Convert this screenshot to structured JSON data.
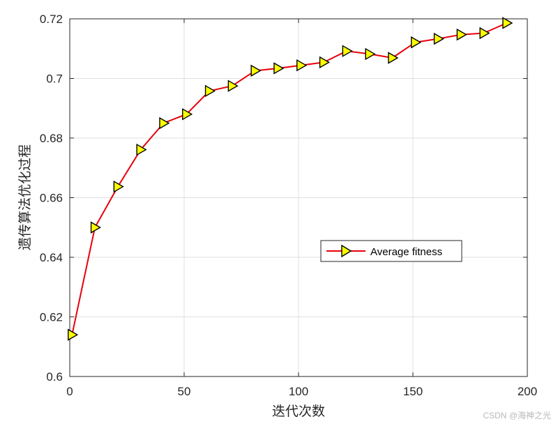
{
  "chart_data": {
    "type": "line",
    "title": "",
    "xlabel": "迭代次数",
    "ylabel": "遗传算法优化过程",
    "xlim": [
      0,
      200
    ],
    "ylim": [
      0.6,
      0.72
    ],
    "xticks": [
      0,
      50,
      100,
      150,
      200
    ],
    "yticks": [
      0.6,
      0.62,
      0.64,
      0.66,
      0.68,
      0.7,
      0.72
    ],
    "xtick_labels": [
      "0",
      "50",
      "100",
      "150",
      "200"
    ],
    "ytick_labels": [
      "0.6",
      "0.62",
      "0.64",
      "0.66",
      "0.68",
      "0.7",
      "0.72"
    ],
    "grid": true,
    "legend_position": "center-right",
    "series": [
      {
        "name": "Average fitness",
        "color": "#e8000b",
        "marker": "triangle-right",
        "marker_face_color": "#ffff00",
        "marker_edge_color": "#000000",
        "x": [
          1,
          11,
          21,
          31,
          41,
          51,
          61,
          71,
          81,
          91,
          101,
          111,
          121,
          131,
          141,
          151,
          161,
          171,
          181,
          191
        ],
        "y": [
          0.614,
          0.65,
          0.6637,
          0.6761,
          0.685,
          0.688,
          0.6958,
          0.6975,
          0.7026,
          0.7034,
          0.7044,
          0.7054,
          0.7092,
          0.7082,
          0.7069,
          0.7121,
          0.7133,
          0.7147,
          0.7152,
          0.7186
        ]
      }
    ]
  },
  "watermark": "CSDN @海神之光"
}
